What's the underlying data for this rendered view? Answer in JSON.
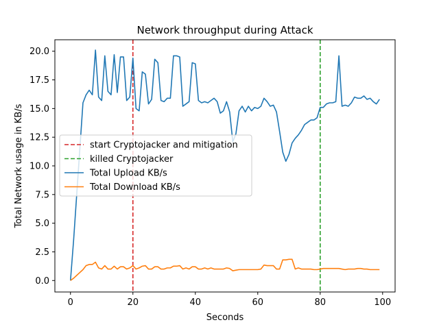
{
  "chart_data": {
    "type": "line",
    "title": "Network throughput during Attack",
    "xlabel": "Seconds",
    "ylabel": "Total Network usage in KB/s",
    "xlim": [
      -5,
      104
    ],
    "ylim": [
      -1.0,
      21.0
    ],
    "xticks": [
      0,
      20,
      40,
      60,
      80,
      100
    ],
    "xtick_labels": [
      "0",
      "20",
      "40",
      "60",
      "80",
      "100"
    ],
    "yticks": [
      0,
      2.5,
      5,
      7.5,
      10,
      12.5,
      15,
      17.5,
      20
    ],
    "ytick_labels": [
      "0.0",
      "2.5",
      "5.0",
      "7.5",
      "10.0",
      "12.5",
      "15.0",
      "17.5",
      "20.0"
    ],
    "grid": false,
    "legend_position": "center-left",
    "vlines": [
      {
        "name": "start Cryptojacker and mitigation",
        "x": 20,
        "color": "#d62728",
        "style": "dashed"
      },
      {
        "name": "killed Cryptojacker",
        "x": 80,
        "color": "#2ca02c",
        "style": "dashed"
      }
    ],
    "series": [
      {
        "name": "Total Upload KB/s",
        "color": "#1f77b4",
        "x": [
          0,
          1,
          2,
          3,
          4,
          5,
          6,
          7,
          8,
          9,
          10,
          11,
          12,
          13,
          14,
          15,
          16,
          17,
          18,
          19,
          20,
          21,
          22,
          23,
          24,
          25,
          26,
          27,
          28,
          29,
          30,
          31,
          32,
          33,
          34,
          35,
          36,
          37,
          38,
          39,
          40,
          41,
          42,
          43,
          44,
          45,
          46,
          47,
          48,
          49,
          50,
          51,
          52,
          53,
          54,
          55,
          56,
          57,
          58,
          59,
          60,
          61,
          62,
          63,
          64,
          65,
          66,
          67,
          68,
          69,
          70,
          71,
          72,
          73,
          74,
          75,
          76,
          77,
          78,
          79,
          80,
          81,
          82,
          83,
          84,
          85,
          86,
          87,
          88,
          89,
          90,
          91,
          92,
          93,
          94,
          95,
          96,
          97,
          98,
          99
        ],
        "values": [
          0,
          3.5,
          7.5,
          11.5,
          15.5,
          16.2,
          16.6,
          16.2,
          20.1,
          16.0,
          15.7,
          19.6,
          16.5,
          16.2,
          19.7,
          16.4,
          19.5,
          19.5,
          15.7,
          16.0,
          19.4,
          15.0,
          14.8,
          18.2,
          18.0,
          15.4,
          15.8,
          19.3,
          19.0,
          15.7,
          15.6,
          15.9,
          15.9,
          19.6,
          19.6,
          19.5,
          15.2,
          15.4,
          15.6,
          19.0,
          18.9,
          15.7,
          15.5,
          15.6,
          15.5,
          15.7,
          15.9,
          15.6,
          14.6,
          14.8,
          15.6,
          14.7,
          12.1,
          12.8,
          14.8,
          15.2,
          14.7,
          15.2,
          14.8,
          15.1,
          15.0,
          15.2,
          15.9,
          15.6,
          15.2,
          15.3,
          14.7,
          13.0,
          11.2,
          10.4,
          11.0,
          12.0,
          12.4,
          12.7,
          13.1,
          13.6,
          13.8,
          14.0,
          14.0,
          14.2,
          15.1,
          15.1,
          15.4,
          15.5,
          15.5,
          15.6,
          19.6,
          15.2,
          15.3,
          15.2,
          15.5,
          16.0,
          15.9,
          15.9,
          16.1,
          15.8,
          15.9,
          15.6,
          15.4,
          15.8
        ]
      },
      {
        "name": "Total Download KB/s",
        "color": "#ff7f0e",
        "x": [
          0,
          1,
          2,
          3,
          4,
          5,
          6,
          7,
          8,
          9,
          10,
          11,
          12,
          13,
          14,
          15,
          16,
          17,
          18,
          19,
          20,
          21,
          22,
          23,
          24,
          25,
          26,
          27,
          28,
          29,
          30,
          31,
          32,
          33,
          34,
          35,
          36,
          37,
          38,
          39,
          40,
          41,
          42,
          43,
          44,
          45,
          46,
          47,
          48,
          49,
          50,
          51,
          52,
          53,
          54,
          55,
          56,
          57,
          58,
          59,
          60,
          61,
          62,
          63,
          64,
          65,
          66,
          67,
          68,
          69,
          70,
          71,
          72,
          73,
          74,
          75,
          76,
          77,
          78,
          79,
          80,
          81,
          82,
          83,
          84,
          85,
          86,
          87,
          88,
          89,
          90,
          91,
          92,
          93,
          94,
          95,
          96,
          97,
          98,
          99
        ],
        "values": [
          0,
          0.2,
          0.45,
          0.7,
          0.95,
          1.3,
          1.4,
          1.4,
          1.6,
          1.1,
          1.0,
          1.3,
          1.0,
          1.0,
          1.25,
          1.0,
          1.2,
          1.2,
          1.0,
          1.1,
          1.3,
          1.0,
          1.1,
          1.25,
          1.3,
          1.0,
          1.0,
          1.2,
          1.2,
          1.0,
          1.0,
          1.1,
          1.1,
          1.25,
          1.25,
          1.3,
          1.0,
          1.1,
          1.0,
          1.2,
          1.2,
          1.0,
          1.0,
          1.1,
          1.0,
          1.1,
          1.0,
          1.0,
          1.0,
          1.0,
          1.1,
          1.05,
          0.85,
          0.9,
          0.95,
          0.95,
          0.95,
          0.95,
          0.95,
          0.95,
          0.95,
          1.0,
          1.35,
          1.3,
          1.3,
          1.3,
          1.0,
          1.0,
          1.8,
          1.8,
          1.85,
          1.85,
          1.0,
          1.1,
          1.0,
          1.0,
          1.0,
          1.0,
          0.95,
          0.95,
          1.0,
          1.05,
          1.05,
          1.05,
          1.05,
          1.05,
          1.05,
          1.0,
          0.95,
          1.0,
          1.0,
          1.0,
          1.05,
          1.05,
          1.0,
          1.0,
          0.95,
          0.95,
          0.95,
          0.95
        ]
      }
    ]
  }
}
